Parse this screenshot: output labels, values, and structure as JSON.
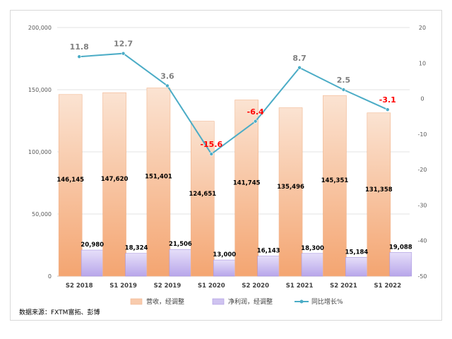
{
  "chart_data": {
    "type": "bar",
    "categories": [
      "S2 2018",
      "S1 2019",
      "S2 2019",
      "S1 2020",
      "S2 2020",
      "S1 2021",
      "S2 2021",
      "S1 2022"
    ],
    "series": [
      {
        "name": "营收，经调整",
        "type": "bar",
        "axis": "left",
        "values": [
          146145,
          147620,
          151401,
          124651,
          141745,
          135496,
          145351,
          131358
        ],
        "labels": [
          "146,145",
          "147,620",
          "151,401",
          "124,651",
          "141,745",
          "135,496",
          "145,351",
          "131,358"
        ],
        "color": "#f8cbad"
      },
      {
        "name": "净利润，经调整",
        "type": "bar",
        "axis": "left",
        "values": [
          20980,
          18324,
          21506,
          13000,
          16143,
          18300,
          15184,
          19088
        ],
        "labels": [
          "20,980",
          "18,324",
          "21,506",
          "13,000",
          "16,143",
          "18,300",
          "15,184",
          "19,088"
        ],
        "color": "#cfc3f0"
      },
      {
        "name": "同比增长%",
        "type": "line",
        "axis": "right",
        "values": [
          11.8,
          12.7,
          3.6,
          -15.6,
          -6.4,
          8.7,
          2.5,
          -3.1
        ],
        "labels": [
          "11.8",
          "12.7",
          "3.6",
          "-15.6",
          "-6.4",
          "8.7",
          "2.5",
          "-3.1"
        ],
        "color": "#4bacc6",
        "negative_label_color": "#ff0000",
        "positive_label_color": "#7f7f7f"
      }
    ],
    "ylim": [
      0,
      200000
    ],
    "y_ticks": [
      "0",
      "50,000",
      "100,000",
      "150,000",
      "200,000"
    ],
    "y_tick_values": [
      0,
      50000,
      100000,
      150000,
      200000
    ],
    "y2lim": [
      -50,
      20
    ],
    "y2_ticks": [
      "-50",
      "-40",
      "-30",
      "-20",
      "-10",
      "0",
      "10",
      "20"
    ],
    "y2_tick_values": [
      -50,
      -40,
      -30,
      -20,
      -10,
      0,
      10,
      20
    ],
    "grid": true,
    "legend": "bottom"
  },
  "source_note": "数据来源：FXTM富拓、彭博"
}
